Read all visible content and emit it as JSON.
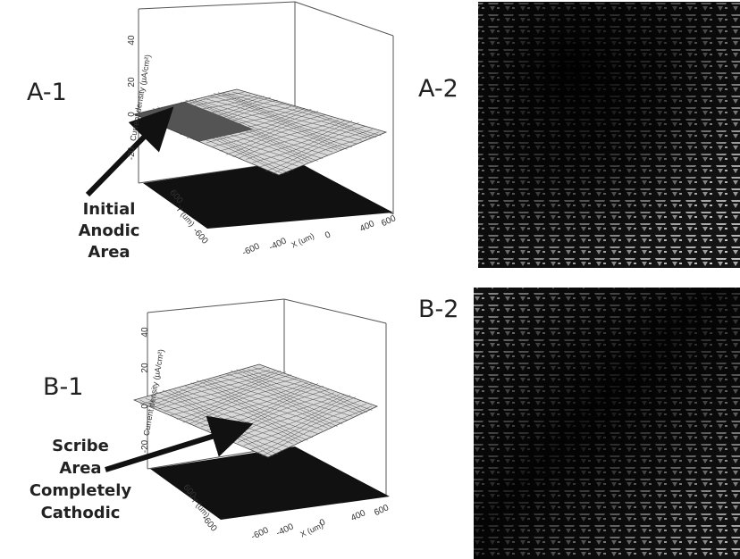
{
  "panels": [
    {
      "label": "A-1",
      "annotation": [
        "Initial",
        "Anodic",
        "Area"
      ],
      "z_axis_label": "Current density (μA/cm²)",
      "z_ticks": [
        40,
        20,
        0,
        -20
      ],
      "x_axis_label": "X (um)",
      "x_ticks": [
        -600,
        -400,
        0,
        400,
        600
      ],
      "y_axis_label": "Y (um)",
      "y_ticks": [
        600,
        -600
      ]
    },
    {
      "label": "A-2"
    },
    {
      "label": "B-1",
      "annotation": [
        "Scribe",
        "Area",
        "Completely",
        "Cathodic"
      ],
      "z_axis_label": "Current density (μA/cm²)",
      "z_ticks": [
        40,
        20,
        0,
        -20
      ],
      "x_axis_label": "X (um)",
      "x_ticks": [
        -600,
        -400,
        0,
        400,
        600
      ],
      "y_axis_label": "Y (um)",
      "y_ticks": [
        600,
        -600
      ]
    },
    {
      "label": "B-2"
    }
  ]
}
